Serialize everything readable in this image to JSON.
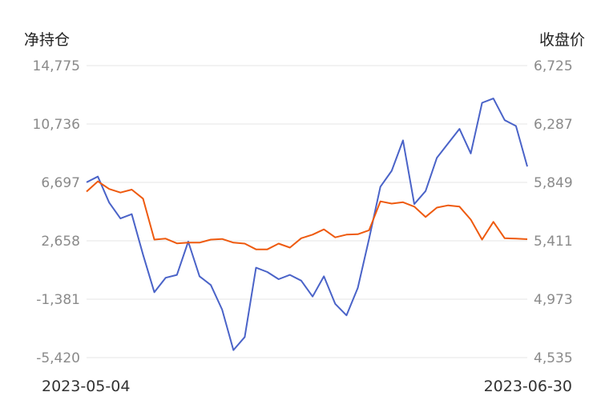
{
  "chart_data": {
    "type": "line",
    "left_axis_title": "净持仓",
    "right_axis_title": "收盘价",
    "left_ticks": [
      "14,775",
      "10,736",
      "6,697",
      "2,658",
      "-1,381",
      "-5,420"
    ],
    "right_ticks": [
      "6,725",
      "6,287",
      "5,849",
      "5,411",
      "4,973",
      "4,535"
    ],
    "ylim_left": [
      -5420,
      14775
    ],
    "ylim_right": [
      4535,
      6725
    ],
    "x_start_label": "2023-05-04",
    "x_end_label": "2023-06-30",
    "grid": true,
    "series": [
      {
        "axis": "left",
        "color": "#4a63c8",
        "values": [
          6700,
          7100,
          5300,
          4200,
          4500,
          1700,
          -900,
          100,
          300,
          2600,
          200,
          -400,
          -2100,
          -4900,
          -4000,
          800,
          500,
          0,
          300,
          -100,
          -1200,
          200,
          -1700,
          -2500,
          -600,
          2800,
          6400,
          7500,
          9600,
          5200,
          6100,
          8400,
          9400,
          10400,
          8700,
          12200,
          12500,
          11000,
          10600,
          7800
        ]
      },
      {
        "axis": "right",
        "color": "#ee5a0f",
        "values": [
          5780,
          5857,
          5800,
          5773,
          5795,
          5727,
          5420,
          5427,
          5392,
          5397,
          5397,
          5420,
          5425,
          5397,
          5390,
          5347,
          5347,
          5390,
          5360,
          5430,
          5457,
          5497,
          5437,
          5457,
          5460,
          5490,
          5707,
          5690,
          5700,
          5667,
          5590,
          5660,
          5677,
          5667,
          5570,
          5420,
          5553,
          5430,
          5427,
          5423
        ]
      }
    ]
  }
}
